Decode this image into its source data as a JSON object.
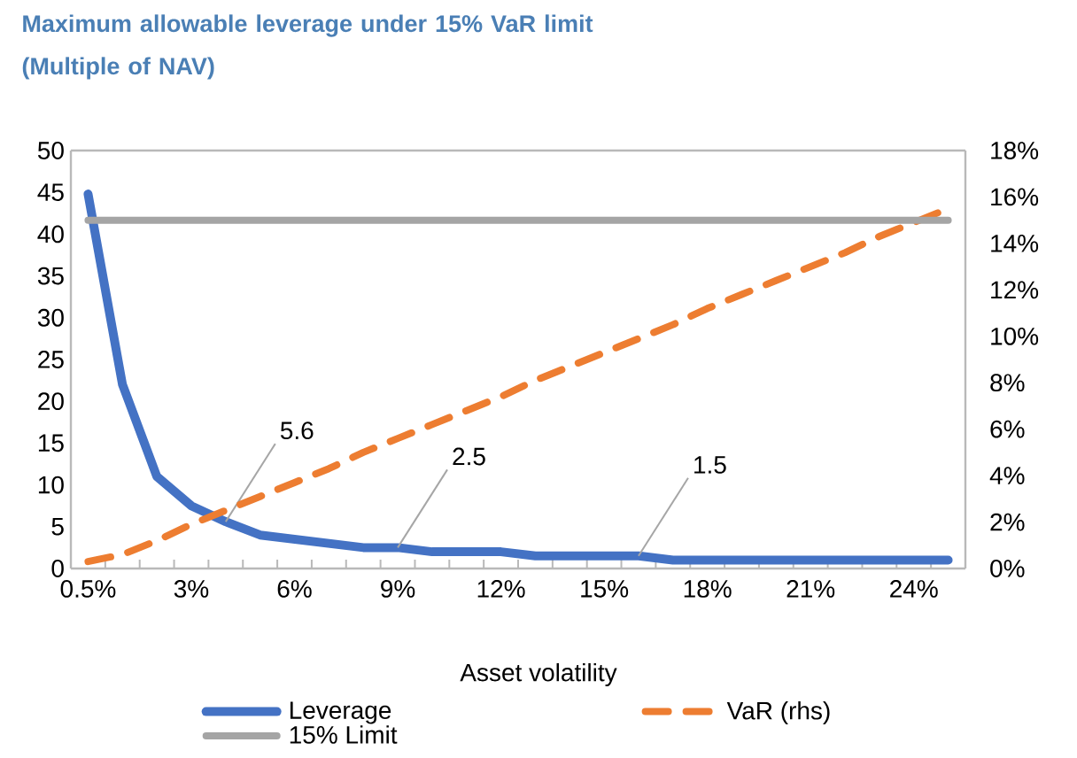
{
  "chart_data": {
    "type": "line",
    "title": "Maximum allowable  leverage under 15% VaR limit (Multiple of NAV)",
    "xlabel": "Asset volatility",
    "categories": [
      "0.5%",
      null,
      null,
      "3%",
      null,
      null,
      "6%",
      null,
      null,
      "9%",
      null,
      null,
      "12%",
      null,
      null,
      "15%",
      null,
      null,
      "18%",
      null,
      null,
      "21%",
      null,
      null,
      "24%",
      null
    ],
    "series": [
      {
        "name": "Leverage",
        "color": "#4472c4",
        "line_style": "solid",
        "values": [
          44.8,
          22,
          11,
          7.5,
          5.6,
          4,
          3.5,
          3,
          2.5,
          2.5,
          2,
          2,
          2,
          1.5,
          1.5,
          1.5,
          1.5,
          1,
          1,
          1,
          1,
          1,
          1,
          1,
          1,
          1
        ],
        "value_labels": [
          null,
          null,
          null,
          null,
          "5.6",
          null,
          null,
          null,
          null,
          "2.5",
          null,
          null,
          null,
          null,
          null,
          null,
          "1.5",
          null,
          null,
          null,
          null,
          null,
          null,
          null,
          null,
          null
        ]
      },
      {
        "name": "VaR (rhs)",
        "color": "#ed7d31",
        "line_style": "dashed",
        "axis": "y2",
        "values": [
          0.3,
          0.6,
          1.2,
          1.9,
          2.5,
          3.1,
          3.7,
          4.3,
          5,
          5.6,
          6.2,
          6.8,
          7.4,
          8.1,
          8.7,
          9.3,
          9.9,
          10.5,
          11.2,
          11.8,
          12.4,
          13,
          13.6,
          14.3,
          14.9,
          15.5
        ]
      },
      {
        "name": "15% Limit",
        "color": "#a5a5a5",
        "line_style": "solid",
        "axis": "y2",
        "values": [
          15,
          15,
          15,
          15,
          15,
          15,
          15,
          15,
          15,
          15,
          15,
          15,
          15,
          15,
          15,
          15,
          15,
          15,
          15,
          15,
          15,
          15,
          15,
          15,
          15,
          15
        ]
      }
    ],
    "ylim": [
      0,
      50
    ],
    "yticks": [
      0,
      5,
      10,
      15,
      20,
      25,
      30,
      35,
      40,
      45,
      50
    ],
    "y2lim": [
      0,
      18
    ],
    "y2ticks": [
      {
        "value": 0,
        "label": "0%"
      },
      {
        "value": 2,
        "label": "2%"
      },
      {
        "value": 4,
        "label": "4%"
      },
      {
        "value": 6,
        "label": "6%"
      },
      {
        "value": 8,
        "label": "8%"
      },
      {
        "value": 10,
        "label": "10%"
      },
      {
        "value": 12,
        "label": "12%"
      },
      {
        "value": 14,
        "label": "14%"
      },
      {
        "value": 16,
        "label": "16%"
      },
      {
        "value": 18,
        "label": "18%"
      }
    ],
    "legend": "bottom"
  }
}
